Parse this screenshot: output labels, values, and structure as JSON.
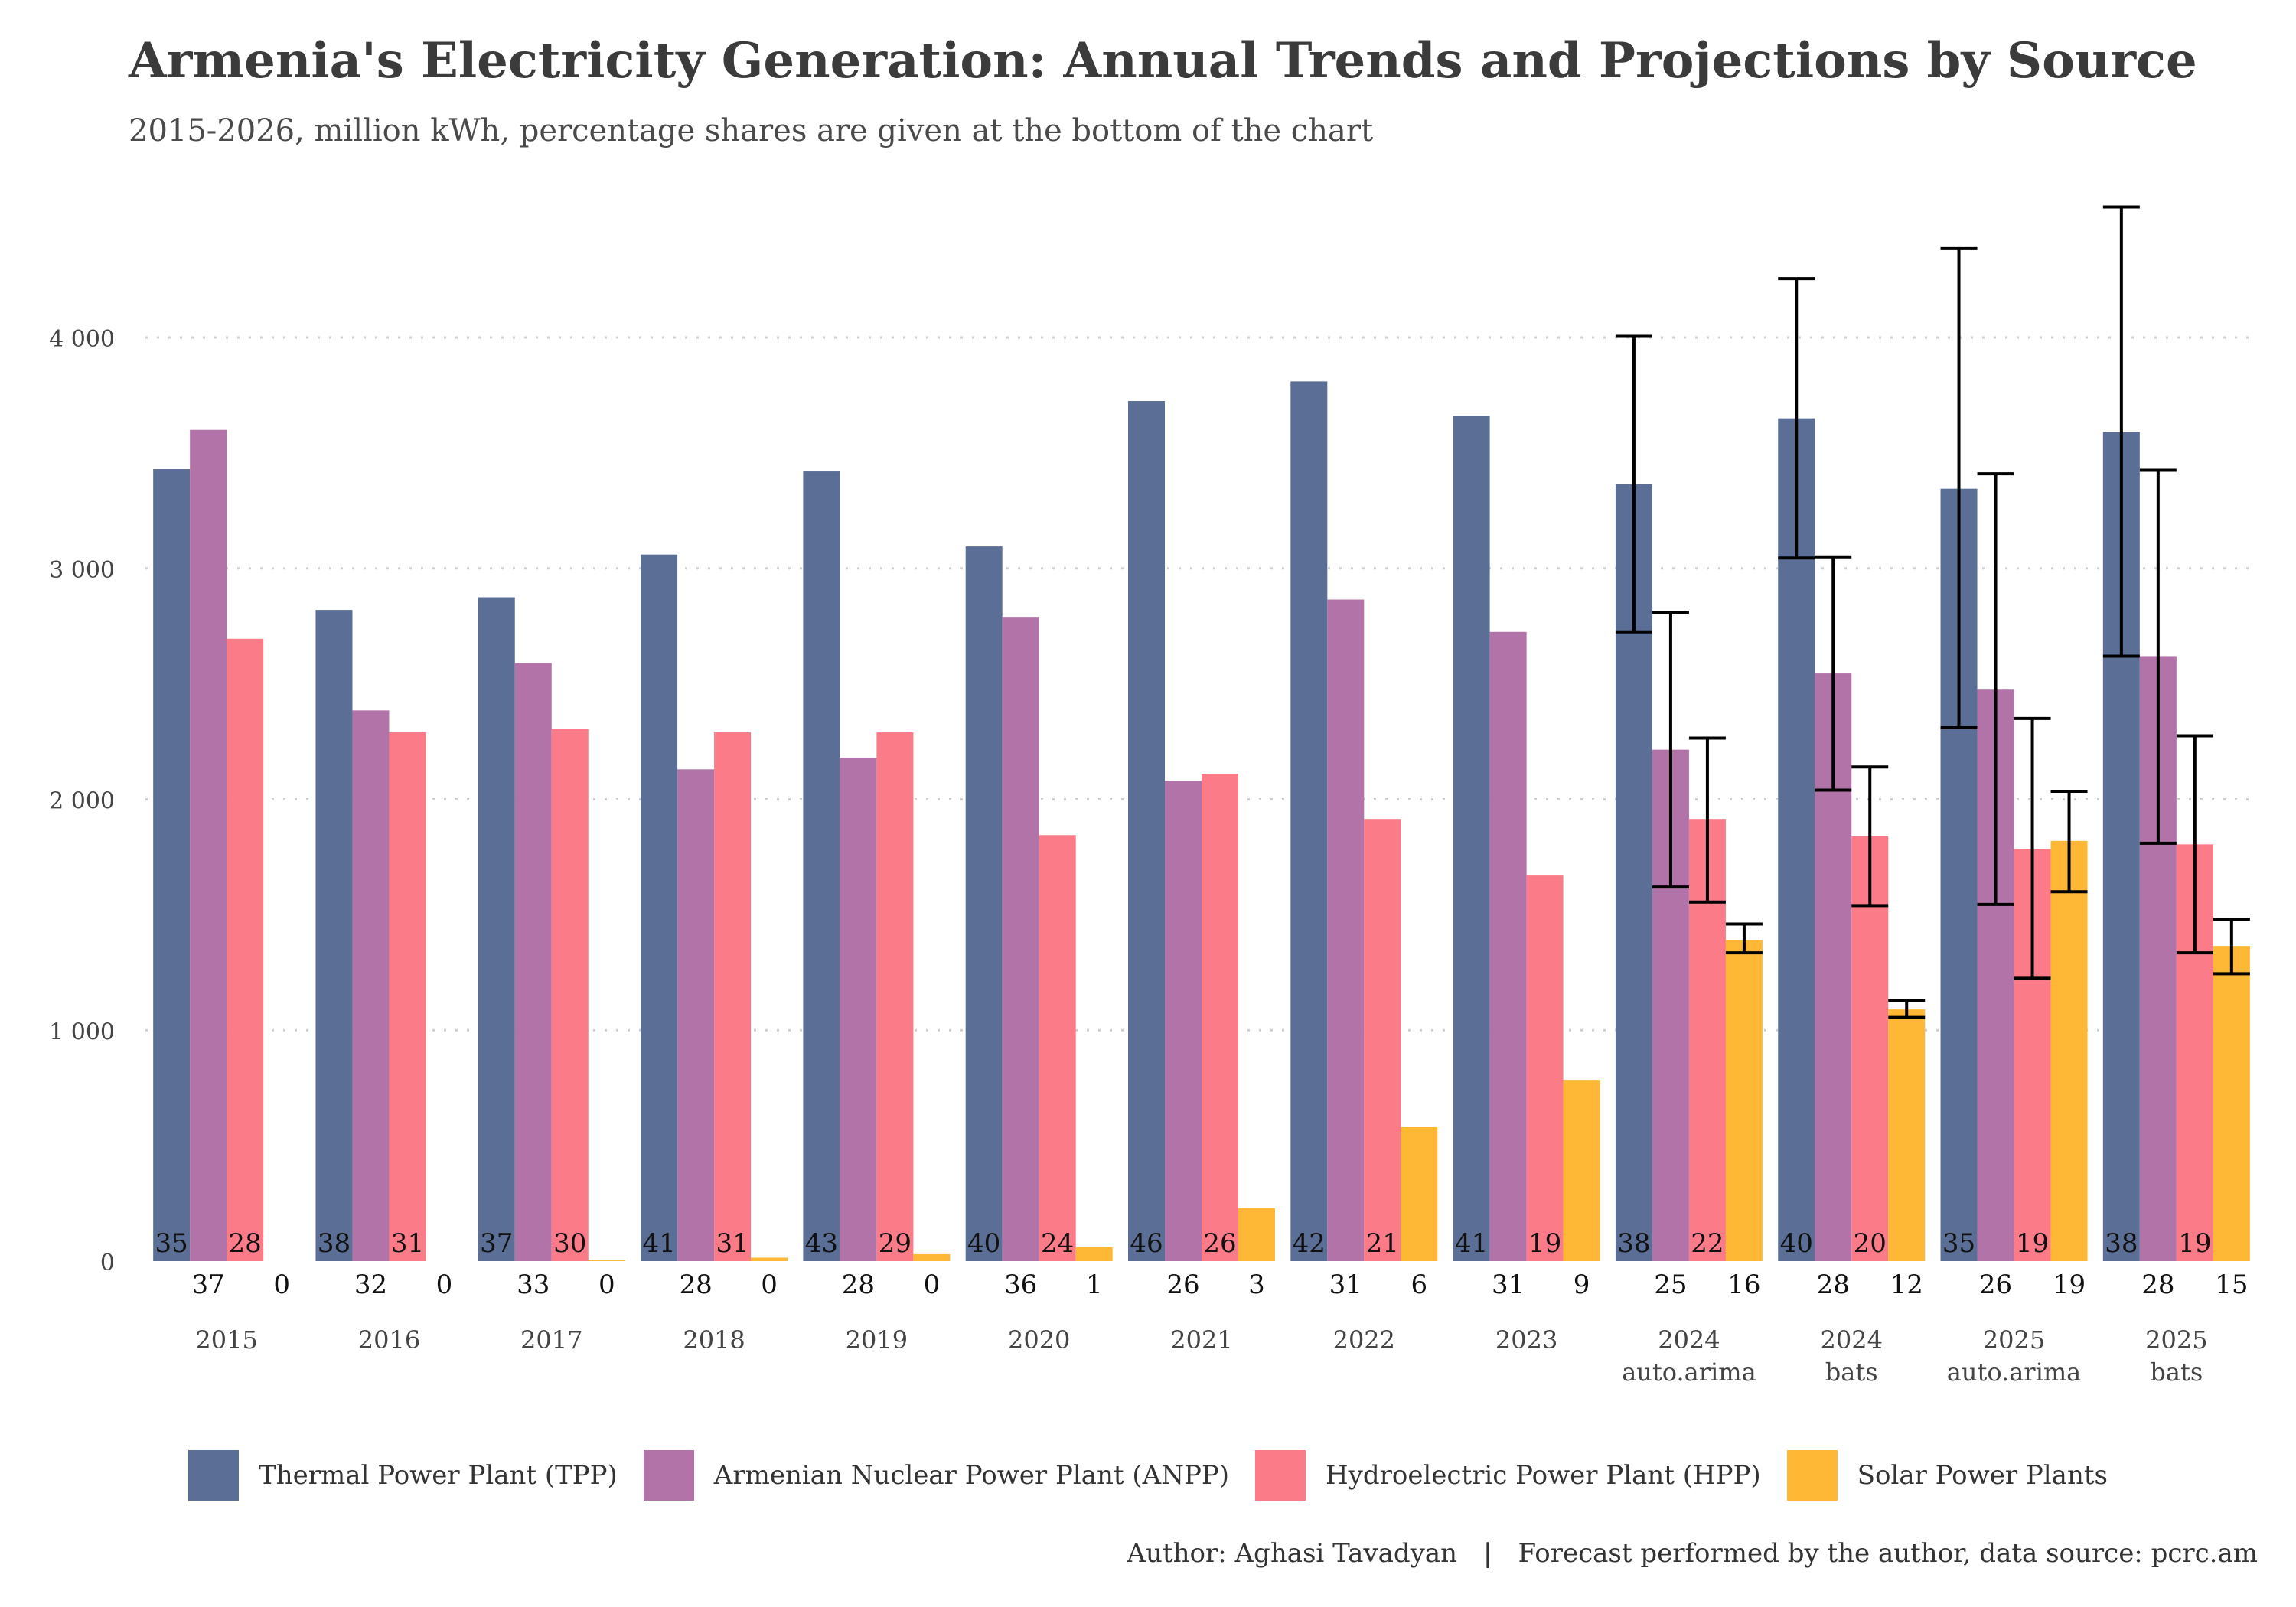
{
  "chart_data": {
    "type": "bar",
    "title": "Armenia's Electricity Generation: Annual Trends and Projections by Source",
    "subtitle": "2015-2026, million kWh, percentage shares are given at the bottom of the chart",
    "xlabel": "",
    "ylabel": "",
    "ylim": [
      0,
      4600
    ],
    "yticks": [
      0,
      1000,
      2000,
      3000,
      4000
    ],
    "ytick_labels": [
      "0",
      "1 000",
      "2 000",
      "3 000",
      "4 000"
    ],
    "grid": "horizontal-dotted",
    "legend_position": "bottom",
    "categories": [
      [
        "2015"
      ],
      [
        "2016"
      ],
      [
        "2017"
      ],
      [
        "2018"
      ],
      [
        "2019"
      ],
      [
        "2020"
      ],
      [
        "2021"
      ],
      [
        "2022"
      ],
      [
        "2023"
      ],
      [
        "2024",
        "auto.arima"
      ],
      [
        "2024",
        "bats"
      ],
      [
        "2025",
        "auto.arima"
      ],
      [
        "2025",
        "bats"
      ]
    ],
    "series": [
      {
        "name": "Thermal Power Plant (TPP)",
        "color": "#5b6e96",
        "values": [
          3430,
          2820,
          2875,
          3060,
          3420,
          3095,
          3725,
          3810,
          3660,
          3365,
          3650,
          3345,
          3590
        ],
        "error_bars": [
          null,
          null,
          null,
          null,
          null,
          null,
          null,
          null,
          null,
          [
            2725,
            4005
          ],
          [
            3045,
            4255
          ],
          [
            2310,
            4385
          ],
          [
            2620,
            4565
          ]
        ],
        "shares": [
          "35",
          "38",
          "37",
          "41",
          "43",
          "40",
          "46",
          "42",
          "41",
          "38",
          "40",
          "35",
          "38"
        ]
      },
      {
        "name": "Armenian Nuclear Power Plant (ANPP)",
        "color": "#b274a8",
        "values": [
          3600,
          2385,
          2590,
          2130,
          2180,
          2790,
          2080,
          2865,
          2725,
          2215,
          2545,
          2475,
          2620
        ],
        "error_bars": [
          null,
          null,
          null,
          null,
          null,
          null,
          null,
          null,
          null,
          [
            1620,
            2810
          ],
          [
            2040,
            3050
          ],
          [
            1545,
            3410
          ],
          [
            1810,
            3425
          ]
        ],
        "shares": [
          "37",
          "32",
          "33",
          "28",
          "28",
          "36",
          "26",
          "31",
          "31",
          "25",
          "28",
          "26",
          "28"
        ]
      },
      {
        "name": "Hydroelectric Power Plant (HPP)",
        "color": "#fb7c88",
        "values": [
          2695,
          2290,
          2305,
          2290,
          2290,
          1845,
          2110,
          1915,
          1670,
          1915,
          1840,
          1785,
          1805
        ],
        "error_bars": [
          null,
          null,
          null,
          null,
          null,
          null,
          null,
          null,
          null,
          [
            1555,
            2265
          ],
          [
            1540,
            2140
          ],
          [
            1225,
            2350
          ],
          [
            1335,
            2275
          ]
        ],
        "shares": [
          "28",
          "31",
          "30",
          "31",
          "29",
          "24",
          "26",
          "21",
          "19",
          "22",
          "20",
          "19",
          "19"
        ]
      },
      {
        "name": "Solar Power Plants",
        "color": "#ffb836",
        "values": [
          0,
          0,
          4,
          15,
          30,
          60,
          230,
          580,
          785,
          1390,
          1090,
          1820,
          1365
        ],
        "error_bars": [
          null,
          null,
          null,
          null,
          null,
          null,
          null,
          null,
          null,
          [
            1335,
            1460
          ],
          [
            1055,
            1130
          ],
          [
            1600,
            2035
          ],
          [
            1245,
            1480
          ]
        ],
        "shares": [
          "0",
          "0",
          "0",
          "0",
          "0",
          "1",
          "3",
          "6",
          "9",
          "16",
          "12",
          "19",
          "15"
        ]
      }
    ]
  },
  "caption": {
    "author": "Author: Aghasi Tavadyan",
    "separator": "|",
    "source": "Forecast performed by the author, data source: pcrc.am"
  }
}
